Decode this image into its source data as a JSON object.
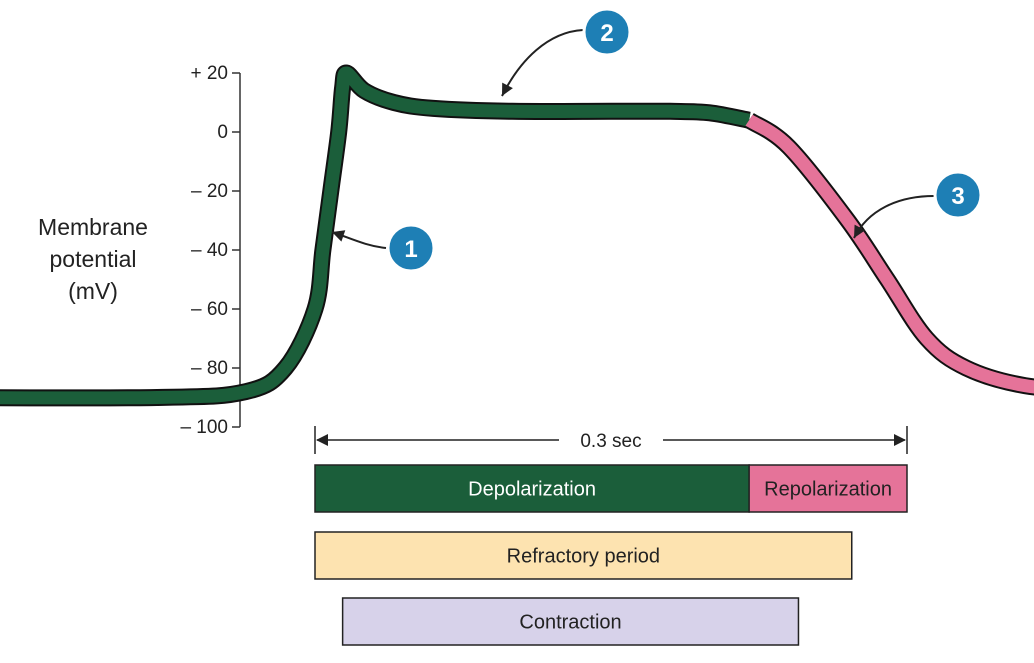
{
  "chart_data": {
    "type": "line",
    "ylabel_lines": [
      "Membrane",
      "potential",
      "(mV)"
    ],
    "yticks": [
      {
        "value": 20,
        "label": "+ 20"
      },
      {
        "value": 0,
        "label": "0"
      },
      {
        "value": -20,
        "label": "– 20"
      },
      {
        "value": -40,
        "label": "– 40"
      },
      {
        "value": -60,
        "label": "– 60"
      },
      {
        "value": -80,
        "label": "– 80"
      },
      {
        "value": -100,
        "label": "– 100"
      }
    ],
    "ylim": [
      -100,
      20
    ],
    "time_units": "s",
    "series": [
      {
        "color": "#1b5e3a",
        "points": [
          [
            -0.21,
            -90
          ],
          [
            -0.08,
            -90
          ],
          [
            -0.035,
            -88
          ],
          [
            -0.015,
            -80
          ],
          [
            0.0,
            -60
          ],
          [
            0.004,
            -40
          ],
          [
            0.008,
            -20
          ],
          [
            0.012,
            0
          ],
          [
            0.014,
            15
          ],
          [
            0.016,
            20
          ],
          [
            0.025,
            14
          ],
          [
            0.04,
            10
          ],
          [
            0.06,
            8
          ],
          [
            0.1,
            7
          ],
          [
            0.15,
            7
          ],
          [
            0.18,
            7
          ],
          [
            0.2,
            6.5
          ],
          [
            0.22,
            4
          ]
        ]
      },
      {
        "color": "#e57399",
        "points": [
          [
            0.22,
            4
          ],
          [
            0.24,
            -5
          ],
          [
            0.27,
            -30
          ],
          [
            0.29,
            -50
          ],
          [
            0.31,
            -70
          ],
          [
            0.33,
            -80
          ],
          [
            0.36,
            -86
          ],
          [
            0.4,
            -88
          ],
          [
            0.45,
            -89
          ],
          [
            0.5,
            -89
          ]
        ]
      }
    ],
    "duration": {
      "start": 0,
      "end": 0.3,
      "label": "0.3 sec"
    },
    "phase_bars": [
      {
        "label": "Depolarization",
        "start": 0,
        "end": 0.22,
        "color": "#1b5e3a",
        "text_color": "#ffffff",
        "row": 0
      },
      {
        "label": "Repolarization",
        "start": 0.22,
        "end": 0.3,
        "color": "#e57399",
        "text_color": "#222222",
        "row": 0
      },
      {
        "label": "Refractory period",
        "start": 0,
        "end": 0.272,
        "color": "#fde3b0",
        "text_color": "#222222",
        "row": 1
      },
      {
        "label": "Contraction",
        "start": 0.014,
        "end": 0.245,
        "color": "#d7d2ea",
        "text_color": "#222222",
        "row": 2
      }
    ],
    "markers": [
      {
        "label": "1",
        "color": "#1e7fb5"
      },
      {
        "label": "2",
        "color": "#1e7fb5"
      },
      {
        "label": "3",
        "color": "#1e7fb5"
      }
    ]
  }
}
